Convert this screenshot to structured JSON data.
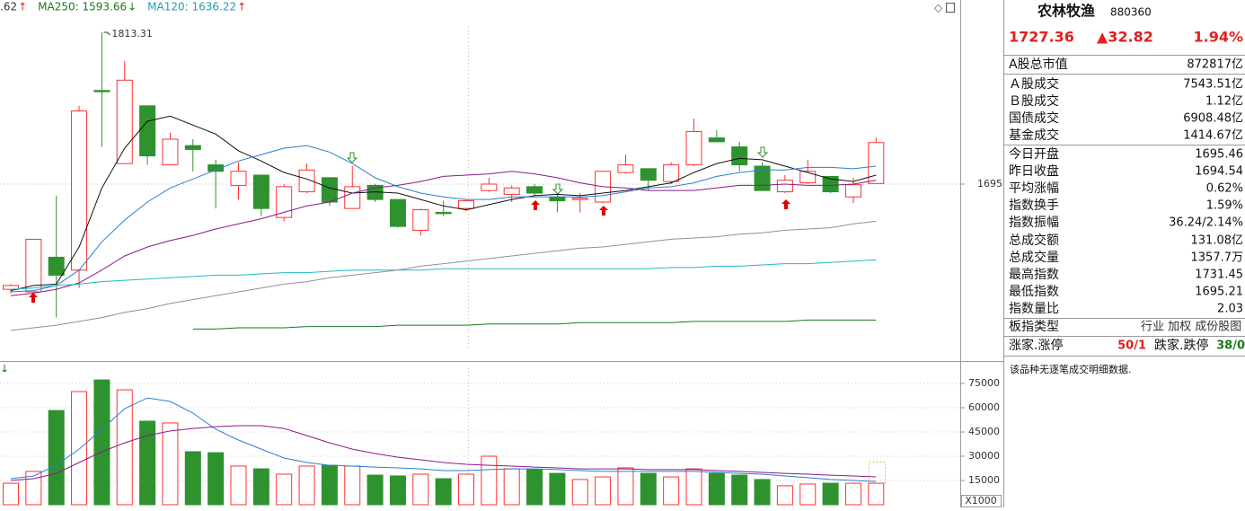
{
  "chart_data": [
    {
      "type": "candlestick",
      "legend": [
        {
          "text": ".62",
          "arrow": "↑",
          "color": "#333333",
          "arrow_color": "#e02020"
        },
        {
          "text": "MA250: 1593.66",
          "arrow": "↓",
          "color": "#1a7a1a",
          "arrow_color": "#1a7a1a"
        },
        {
          "text": "MA120: 1636.22",
          "arrow": "↑",
          "color": "#20a0b0",
          "arrow_color": "#e02020"
        }
      ],
      "annotation": "1813.31",
      "ylim": [
        1558.5,
        1838.5
      ],
      "yticks": [
        1695
      ],
      "grid": true,
      "up_color": "#ff3030",
      "down_color": "#2e922e",
      "open": [
        1613,
        1611,
        1638,
        1628,
        1768,
        1711,
        1756,
        1710,
        1725,
        1710,
        1694,
        1702,
        1669,
        1689,
        1700,
        1676,
        1694,
        1683,
        1659,
        1673,
        1676,
        1690,
        1687,
        1693,
        1685,
        1683,
        1681,
        1704,
        1707,
        1697,
        1710,
        1731,
        1724,
        1709,
        1689,
        1696,
        1701,
        1685,
        1695.46
      ],
      "high": [
        1617,
        1652,
        1686,
        1756,
        1813.31,
        1791,
        1756,
        1735,
        1730,
        1714,
        1712,
        1702,
        1695,
        1711,
        1700,
        1709,
        1695,
        1683,
        1676,
        1682,
        1683,
        1700,
        1694,
        1695,
        1688,
        1688,
        1705,
        1718,
        1707,
        1712,
        1746,
        1737,
        1728,
        1712,
        1702,
        1714,
        1701,
        1700,
        1731.45
      ],
      "low": [
        1610,
        1610,
        1591,
        1614,
        1724,
        1711,
        1710,
        1710,
        1705,
        1676,
        1683,
        1670,
        1666,
        1688,
        1678,
        1676,
        1681,
        1661,
        1655,
        1670,
        1674,
        1689,
        1681,
        1686,
        1673,
        1673,
        1680,
        1703,
        1690,
        1695,
        1709,
        1728,
        1705,
        1690,
        1688,
        1695,
        1688,
        1680,
        1695.21
      ],
      "close": [
        1616,
        1652,
        1624,
        1752,
        1767,
        1776,
        1717,
        1730,
        1722,
        1705,
        1705,
        1676,
        1693,
        1706,
        1681,
        1693,
        1683,
        1662,
        1675,
        1672,
        1682,
        1695,
        1692,
        1688,
        1682,
        1684,
        1705,
        1710,
        1698,
        1710,
        1736,
        1728,
        1710,
        1690,
        1698,
        1705,
        1689,
        1694.54,
        1727.36
      ],
      "series": [
        {
          "color": "#111111",
          "values": [
            1612,
            1616,
            1617,
            1646,
            1692,
            1723,
            1744,
            1748,
            1741,
            1734,
            1721,
            1713,
            1704,
            1699,
            1692,
            1688,
            1689,
            1688,
            1683,
            1678,
            1675,
            1679,
            1683,
            1686,
            1687,
            1686,
            1688,
            1690,
            1693,
            1696,
            1704,
            1711,
            1715,
            1714,
            1709,
            1704,
            1699,
            1697,
            1702
          ]
        },
        {
          "color": "#2a7fd4",
          "values": [
            1611,
            1612,
            1616,
            1628,
            1650,
            1667,
            1681,
            1692,
            1699,
            1706,
            1713,
            1718,
            1723,
            1725,
            1720,
            1711,
            1700,
            1693,
            1688,
            1685,
            1683,
            1683,
            1685,
            1685,
            1685,
            1685,
            1686,
            1689,
            1692,
            1693,
            1696,
            1701,
            1704,
            1706,
            1706,
            1708,
            1708,
            1707,
            1709
          ]
        },
        {
          "color": "#8a1a8a",
          "values": [
            1608,
            1610,
            1613,
            1618,
            1628,
            1639,
            1646,
            1651,
            1655,
            1660,
            1664,
            1668,
            1673,
            1678,
            1681,
            1688,
            1692,
            1694,
            1697,
            1701,
            1702,
            1703,
            1705,
            1703,
            1700,
            1696,
            1693,
            1692,
            1690,
            1690,
            1690,
            1692,
            1694,
            1694,
            1695,
            1694,
            1694,
            1695,
            1698
          ]
        },
        {
          "color": "#20b8c8",
          "values": [
            1613,
            1614,
            1616,
            1617,
            1619,
            1620,
            1621,
            1622,
            1623,
            1624,
            1624,
            1625,
            1626,
            1626,
            1627,
            1628,
            1628,
            1628,
            1628,
            1629,
            1629,
            1629,
            1629,
            1629,
            1629,
            1629,
            1629,
            1629,
            1629,
            1630,
            1630,
            1631,
            1631,
            1632,
            1633,
            1633,
            1634,
            1635,
            1636
          ]
        },
        {
          "color": "#909090",
          "values": [
            1581,
            1583,
            1585,
            1588,
            1591,
            1595,
            1598,
            1602,
            1605,
            1608,
            1611,
            1614,
            1617,
            1619,
            1622,
            1624,
            1626,
            1628,
            1631,
            1633,
            1635,
            1637,
            1639,
            1641,
            1643,
            1645,
            1646,
            1648,
            1650,
            1652,
            1653,
            1654,
            1656,
            1657,
            1659,
            1660,
            1661,
            1664,
            1666
          ]
        },
        {
          "color": "#1a7a1a",
          "values": [
            null,
            null,
            null,
            null,
            null,
            null,
            null,
            null,
            1582,
            1582,
            1583,
            1583,
            1583,
            1584,
            1584,
            1584,
            1584,
            1585,
            1585,
            1585,
            1585,
            1586,
            1586,
            1586,
            1586,
            1587,
            1587,
            1587,
            1587,
            1587,
            1588,
            1588,
            1588,
            1588,
            1588,
            1589,
            1589,
            1589,
            1589
          ]
        }
      ]
    },
    {
      "type": "bar",
      "marker": "↓",
      "marker_color": "#1a7a1a",
      "unit_label": "X1000",
      "ylim": [
        0,
        87800
      ],
      "yticks": [
        15000,
        30000,
        45000,
        60000,
        75000
      ],
      "grid": true,
      "values": [
        13300,
        20600,
        58300,
        70000,
        77200,
        71100,
        51700,
        50600,
        32800,
        32200,
        23900,
        22200,
        18900,
        23900,
        24400,
        23900,
        18300,
        17800,
        18900,
        16100,
        18900,
        30000,
        22200,
        21700,
        19400,
        15600,
        17200,
        22800,
        19400,
        17200,
        22200,
        19400,
        18300,
        15600,
        11700,
        12800,
        13300,
        13300,
        13300
      ],
      "series": [
        {
          "color": "#2a7fd4",
          "values": [
            16100,
            17800,
            24400,
            34400,
            46700,
            59400,
            66100,
            63900,
            56700,
            46700,
            40000,
            34400,
            28900,
            26100,
            24400,
            23900,
            23300,
            22800,
            22200,
            21100,
            21100,
            21700,
            22200,
            22200,
            21700,
            21100,
            20600,
            20600,
            20600,
            20600,
            20600,
            20000,
            19400,
            18900,
            17800,
            16700,
            15600,
            15000,
            14400
          ]
        },
        {
          "color": "#8a1a8a",
          "values": [
            15000,
            16100,
            19400,
            26100,
            32800,
            38300,
            42800,
            45600,
            47200,
            48300,
            48900,
            48900,
            47200,
            42800,
            38300,
            34400,
            31700,
            29400,
            27800,
            26100,
            25000,
            24400,
            23900,
            23300,
            22800,
            22200,
            22200,
            22200,
            21700,
            21700,
            21700,
            21100,
            20600,
            20000,
            19400,
            18900,
            18300,
            17800,
            17200
          ]
        }
      ]
    }
  ],
  "panel": {
    "name": "农林牧渔",
    "code": "880360",
    "price": "1727.36",
    "change": "▲32.82",
    "change_pct": "1.94%",
    "price_color": "#e02020",
    "rows": [
      {
        "label": "A股总市值",
        "value": "872817亿",
        "color": "#111111"
      },
      {
        "label": "Ａ股成交",
        "value": "7543.51亿",
        "color": "#111111"
      },
      {
        "label": "Ｂ股成交",
        "value": "1.12亿",
        "color": "#111111"
      },
      {
        "label": "国债成交",
        "value": "6908.48亿",
        "color": "#111111"
      },
      {
        "label": "基金成交",
        "value": "1414.67亿",
        "color": "#111111"
      },
      {
        "label": "今日开盘",
        "value": "1695.46",
        "color": "#e02020"
      },
      {
        "label": "昨日收盘",
        "value": "1694.54",
        "color": "#111111"
      },
      {
        "label": "平均涨幅",
        "value": "0.62%",
        "color": "#e02020"
      },
      {
        "label": "指数换手",
        "value": "1.59%",
        "color": "#111111"
      },
      {
        "label": "指数振幅",
        "value": "36.24/2.14%",
        "color": "#111111"
      },
      {
        "label": "总成交额",
        "value": "131.08亿",
        "color": "#111111"
      },
      {
        "label": "总成交量",
        "value": "1357.7万",
        "color": "#111111"
      },
      {
        "label": "最高指数",
        "value": "1731.45",
        "color": "#e02020"
      },
      {
        "label": "最低指数",
        "value": "1695.21",
        "color": "#e02020"
      },
      {
        "label": "指数量比",
        "value": "2.03",
        "color": "#e02020"
      }
    ],
    "sector_label": "板指类型",
    "sector_value": "行业 加权 成份股图",
    "up_label": "涨家.涨停",
    "up_value": "50/1",
    "down_label": "跌家.跌停",
    "down_value": "38/0",
    "note": "该品种无逐笔成交明细数据."
  }
}
